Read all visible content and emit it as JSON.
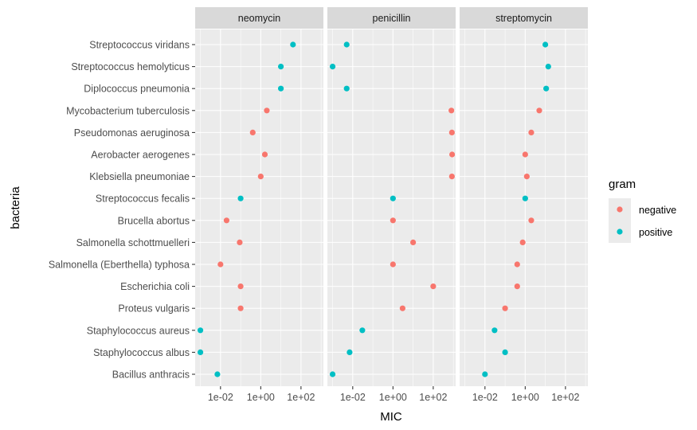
{
  "chart_data": {
    "type": "scatter",
    "facet_by": "antibiotic",
    "facets": [
      "neomycin",
      "penicillin",
      "streptomycin"
    ],
    "xlabel": "MIC",
    "ylabel": "bacteria",
    "x_scale": "log10",
    "xlim": [
      0.00055,
      1300
    ],
    "x_ticks": [
      0.01,
      1,
      100
    ],
    "x_tick_labels": [
      "1e-02",
      "1e+00",
      "1e+02"
    ],
    "grid": true,
    "legend": {
      "title": "gram",
      "position": "right",
      "entries": [
        {
          "label": "negative",
          "color": "#F8766D"
        },
        {
          "label": "positive",
          "color": "#00BFC4"
        }
      ]
    },
    "categories": [
      "Streptococcus viridans",
      "Streptococcus hemolyticus",
      "Diplococcus pneumonia",
      "Mycobacterium tuberculosis",
      "Pseudomonas aeruginosa",
      "Aerobacter aerogenes",
      "Klebsiella pneumoniae",
      "Streptococcus fecalis",
      "Brucella abortus",
      "Salmonella schottmuelleri",
      "Salmonella (Eberthella) typhosa",
      "Escherichia coli",
      "Proteus vulgaris",
      "Staphylococcus aureus",
      "Staphylococcus albus",
      "Bacillus anthracis"
    ],
    "gram": [
      "positive",
      "positive",
      "positive",
      "negative",
      "negative",
      "negative",
      "negative",
      "positive",
      "negative",
      "negative",
      "negative",
      "negative",
      "negative",
      "positive",
      "positive",
      "positive"
    ],
    "series": [
      {
        "facet": "neomycin",
        "values": [
          40,
          10,
          10,
          2,
          0.4,
          1.6,
          1,
          0.1,
          0.02,
          0.09,
          0.01,
          0.1,
          0.1,
          0.001,
          0.001,
          0.007
        ]
      },
      {
        "facet": "penicillin",
        "values": [
          0.005,
          0.001,
          0.005,
          800,
          850,
          870,
          850,
          1,
          1,
          10,
          1,
          100,
          3,
          0.03,
          0.007,
          0.001
        ]
      },
      {
        "facet": "streptomycin",
        "values": [
          10,
          14,
          11,
          5,
          2,
          1,
          1.2,
          1,
          2,
          0.75,
          0.4,
          0.4,
          0.1,
          0.03,
          0.1,
          0.01
        ]
      }
    ]
  }
}
